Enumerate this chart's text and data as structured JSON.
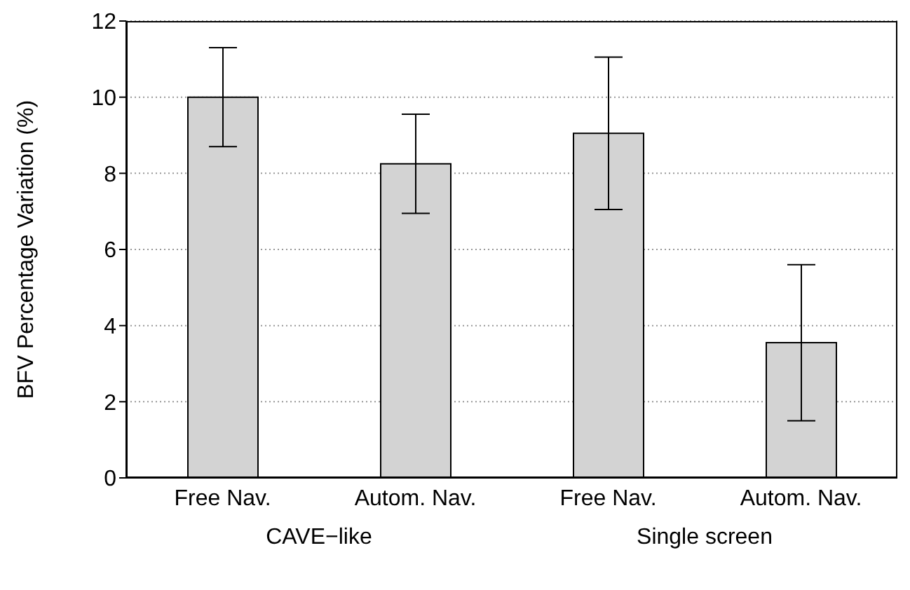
{
  "chart_data": {
    "type": "bar",
    "ylabel": "BFV Percentage Variation (%)",
    "categories": [
      "Free Nav.",
      "Autom. Nav.",
      "Free Nav.",
      "Autom. Nav."
    ],
    "values": [
      10.0,
      8.25,
      9.05,
      3.55
    ],
    "errors": [
      [
        8.7,
        11.3
      ],
      [
        6.95,
        9.55
      ],
      [
        7.05,
        11.05
      ],
      [
        1.5,
        5.6
      ]
    ],
    "color": "#d3d3d3",
    "ylim": [
      0,
      12
    ],
    "yticks": [
      0,
      2,
      4,
      6,
      8,
      10,
      12
    ],
    "grid": "y",
    "annotations": [
      "CAVE−like",
      "Single screen"
    ]
  }
}
